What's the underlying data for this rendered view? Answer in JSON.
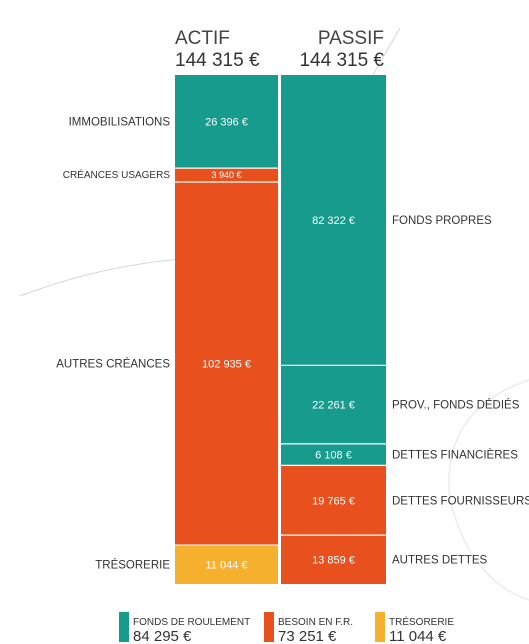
{
  "chart_data": {
    "type": "bar",
    "actif": {
      "title": "ACTIF",
      "total": "144 315 €",
      "segments": [
        {
          "label": "IMMOBILISATIONS",
          "value": 26396,
          "value_text": "26 396 €",
          "color": "#179B8C"
        },
        {
          "label": "CRÉANCES USAGERS",
          "value": 3940,
          "value_text": "3 940 €",
          "color": "#E8501E"
        },
        {
          "label": "AUTRES CRÉANCES",
          "value": 102935,
          "value_text": "102 935 €",
          "color": "#E8501E"
        },
        {
          "label": "TRÉSORERIE",
          "value": 11044,
          "value_text": "11 044 €",
          "color": "#F5B12E"
        }
      ]
    },
    "passif": {
      "title": "PASSIF",
      "total": "144 315 €",
      "segments": [
        {
          "label": "FONDS PROPRES",
          "value": 82322,
          "value_text": "82 322 €",
          "color": "#179B8C"
        },
        {
          "label": "PROV., FONDS DÉDIÉS",
          "value": 22261,
          "value_text": "22 261 €",
          "color": "#179B8C"
        },
        {
          "label": "DETTES FINANCIÈRES",
          "value": 6108,
          "value_text": "6 108 €",
          "color": "#179B8C"
        },
        {
          "label": "DETTES FOURNISSEURS",
          "value": 19765,
          "value_text": "19 765 €",
          "color": "#E8501E"
        },
        {
          "label": "AUTRES DETTES",
          "value": 13859,
          "value_text": "13 859 €",
          "color": "#E8501E"
        }
      ]
    },
    "legend": [
      {
        "title": "FONDS DE ROULEMENT",
        "value": "84 295 €",
        "color": "#179B8C"
      },
      {
        "title": "BESOIN EN F.R.",
        "value": "73 251 €",
        "color": "#E8501E"
      },
      {
        "title": "TRÉSORERIE",
        "value": "11 044 €",
        "color": "#F5B12E"
      }
    ]
  }
}
